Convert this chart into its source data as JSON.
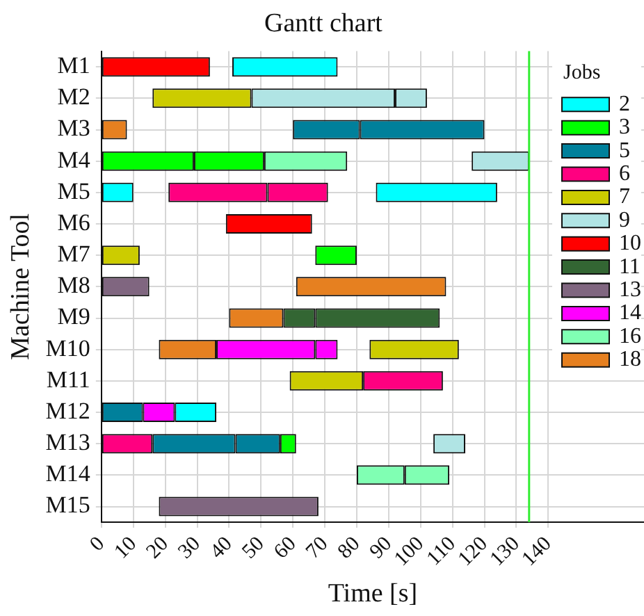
{
  "chart_data": {
    "type": "bar",
    "orientation": "horizontal",
    "title": "Gantt chart",
    "xlabel": "Time [s]",
    "ylabel": "Machine Tool",
    "legend_title": "Jobs",
    "legend": "top right",
    "grid": true,
    "categories": [
      "M1",
      "M2",
      "M3",
      "M4",
      "M5",
      "M6",
      "M7",
      "M8",
      "M9",
      "M10",
      "M11",
      "M12",
      "M13",
      "M14",
      "M15"
    ],
    "xlim": [
      0,
      170
    ],
    "xticks": [
      0,
      10,
      20,
      30,
      40,
      50,
      60,
      70,
      80,
      90,
      100,
      110,
      120,
      130,
      140
    ],
    "ref_lines": [
      {
        "axis": "x",
        "value": 134,
        "color": "#33ee33"
      }
    ],
    "series": [
      {
        "name": "2",
        "color": "#00ffff",
        "base": [
          41,
          null,
          null,
          null,
          0,
          null,
          null,
          null,
          null,
          null,
          null,
          23,
          null,
          null,
          null
        ],
        "values": [
          33,
          null,
          null,
          null,
          10,
          null,
          null,
          null,
          null,
          null,
          null,
          13,
          null,
          null,
          null
        ]
      },
      {
        "color": "#00ffff",
        "base": [
          null,
          null,
          null,
          null,
          86,
          null,
          null,
          null,
          null,
          null,
          null,
          null,
          null,
          null,
          null
        ],
        "values": [
          null,
          null,
          null,
          null,
          38,
          null,
          null,
          null,
          null,
          null,
          null,
          null,
          null,
          null,
          null
        ]
      },
      {
        "name": "3",
        "color": "#00ff00",
        "base": [
          null,
          null,
          null,
          0,
          null,
          null,
          67,
          null,
          null,
          null,
          null,
          null,
          56,
          null,
          null
        ],
        "values": [
          null,
          null,
          null,
          29,
          null,
          null,
          13,
          null,
          null,
          null,
          null,
          null,
          5,
          null,
          null
        ]
      },
      {
        "color": "#00ff00",
        "base": [
          null,
          null,
          null,
          29,
          null,
          null,
          null,
          null,
          null,
          null,
          null,
          null,
          null,
          null,
          null
        ],
        "values": [
          null,
          null,
          null,
          22,
          null,
          null,
          null,
          null,
          null,
          null,
          null,
          null,
          null,
          null,
          null
        ]
      },
      {
        "name": "5",
        "color": "#00809b",
        "base": [
          null,
          null,
          60,
          null,
          null,
          null,
          null,
          null,
          null,
          null,
          null,
          0,
          16,
          null,
          null
        ],
        "values": [
          null,
          null,
          21,
          null,
          null,
          null,
          null,
          null,
          null,
          null,
          null,
          13,
          26,
          null,
          null
        ]
      },
      {
        "color": "#00809b",
        "base": [
          null,
          null,
          81,
          null,
          null,
          null,
          null,
          null,
          null,
          null,
          null,
          null,
          42,
          null,
          null
        ],
        "values": [
          null,
          null,
          39,
          null,
          null,
          null,
          null,
          null,
          null,
          null,
          null,
          null,
          14,
          null,
          null
        ]
      },
      {
        "name": "6",
        "color": "#ff0080",
        "base": [
          null,
          null,
          null,
          null,
          21,
          null,
          null,
          null,
          null,
          null,
          82,
          null,
          0,
          null,
          null
        ],
        "values": [
          null,
          null,
          null,
          null,
          31,
          null,
          null,
          null,
          null,
          null,
          25,
          null,
          16,
          null,
          null
        ]
      },
      {
        "color": "#ff0080",
        "base": [
          null,
          null,
          null,
          null,
          52,
          null,
          null,
          null,
          null,
          null,
          null,
          null,
          null,
          null,
          null
        ],
        "values": [
          null,
          null,
          null,
          null,
          19,
          null,
          null,
          null,
          null,
          null,
          null,
          null,
          null,
          null,
          null
        ]
      },
      {
        "name": "7",
        "color": "#cccc00",
        "base": [
          null,
          16,
          null,
          null,
          null,
          null,
          0,
          null,
          null,
          84,
          59,
          null,
          null,
          null,
          null
        ],
        "values": [
          null,
          31,
          null,
          null,
          null,
          null,
          12,
          null,
          null,
          28,
          23,
          null,
          null,
          null,
          null
        ]
      },
      {
        "name": "9",
        "color": "#b0e4e4",
        "base": [
          null,
          47,
          null,
          116,
          null,
          null,
          null,
          null,
          null,
          null,
          null,
          null,
          104,
          null,
          null
        ],
        "values": [
          null,
          45,
          null,
          18,
          null,
          null,
          null,
          null,
          null,
          null,
          null,
          null,
          10,
          null,
          null
        ]
      },
      {
        "color": "#b0e4e4",
        "base": [
          null,
          92,
          null,
          null,
          null,
          null,
          null,
          null,
          null,
          null,
          null,
          null,
          null,
          null,
          null
        ],
        "values": [
          null,
          10,
          null,
          null,
          null,
          null,
          null,
          null,
          null,
          null,
          null,
          null,
          null,
          null,
          null
        ]
      },
      {
        "name": "10",
        "color": "#ff0000",
        "base": [
          0,
          null,
          null,
          null,
          null,
          39,
          null,
          null,
          null,
          null,
          null,
          null,
          null,
          null,
          null
        ],
        "values": [
          34,
          null,
          null,
          null,
          null,
          27,
          null,
          null,
          null,
          null,
          null,
          null,
          null,
          null,
          null
        ]
      },
      {
        "name": "11",
        "color": "#336633",
        "base": [
          null,
          null,
          null,
          null,
          null,
          null,
          null,
          null,
          57,
          null,
          null,
          null,
          null,
          null,
          null
        ],
        "values": [
          null,
          null,
          null,
          null,
          null,
          null,
          null,
          null,
          10,
          null,
          null,
          null,
          null,
          null,
          null
        ]
      },
      {
        "color": "#336633",
        "base": [
          null,
          null,
          null,
          null,
          null,
          null,
          null,
          null,
          67,
          null,
          null,
          null,
          null,
          null,
          null
        ],
        "values": [
          null,
          null,
          null,
          null,
          null,
          null,
          null,
          null,
          39,
          null,
          null,
          null,
          null,
          null,
          null
        ]
      },
      {
        "name": "13",
        "color": "#806680",
        "base": [
          null,
          null,
          null,
          null,
          null,
          null,
          null,
          0,
          null,
          null,
          null,
          null,
          null,
          null,
          18
        ],
        "values": [
          null,
          null,
          null,
          null,
          null,
          null,
          null,
          15,
          null,
          null,
          null,
          null,
          null,
          null,
          50
        ]
      },
      {
        "name": "14",
        "color": "#ff00ff",
        "base": [
          null,
          null,
          null,
          null,
          null,
          null,
          null,
          null,
          null,
          36,
          null,
          13,
          null,
          null,
          null
        ],
        "values": [
          null,
          null,
          null,
          null,
          null,
          null,
          null,
          null,
          null,
          31,
          null,
          10,
          null,
          null,
          null
        ]
      },
      {
        "color": "#ff00ff",
        "base": [
          null,
          null,
          null,
          null,
          null,
          null,
          null,
          null,
          null,
          67,
          null,
          null,
          null,
          null,
          null
        ],
        "values": [
          null,
          null,
          null,
          null,
          null,
          null,
          null,
          null,
          null,
          7,
          null,
          null,
          null,
          null,
          null
        ]
      },
      {
        "name": "16",
        "color": "#80ffb3",
        "base": [
          null,
          null,
          null,
          51,
          null,
          null,
          null,
          null,
          null,
          null,
          null,
          null,
          null,
          80,
          null
        ],
        "values": [
          null,
          null,
          null,
          26,
          null,
          null,
          null,
          null,
          null,
          null,
          null,
          null,
          null,
          15,
          null
        ]
      },
      {
        "color": "#80ffb3",
        "base": [
          null,
          null,
          null,
          null,
          null,
          null,
          null,
          null,
          null,
          null,
          null,
          null,
          null,
          95,
          null
        ],
        "values": [
          null,
          null,
          null,
          null,
          null,
          null,
          null,
          null,
          null,
          null,
          null,
          null,
          null,
          14,
          null
        ]
      },
      {
        "name": "18",
        "color": "#e68020",
        "base": [
          null,
          null,
          0,
          null,
          null,
          null,
          null,
          61,
          40,
          18,
          null,
          null,
          null,
          null,
          null
        ],
        "values": [
          null,
          null,
          8,
          null,
          null,
          null,
          null,
          47,
          17,
          18,
          null,
          null,
          null,
          null,
          null
        ]
      }
    ]
  }
}
